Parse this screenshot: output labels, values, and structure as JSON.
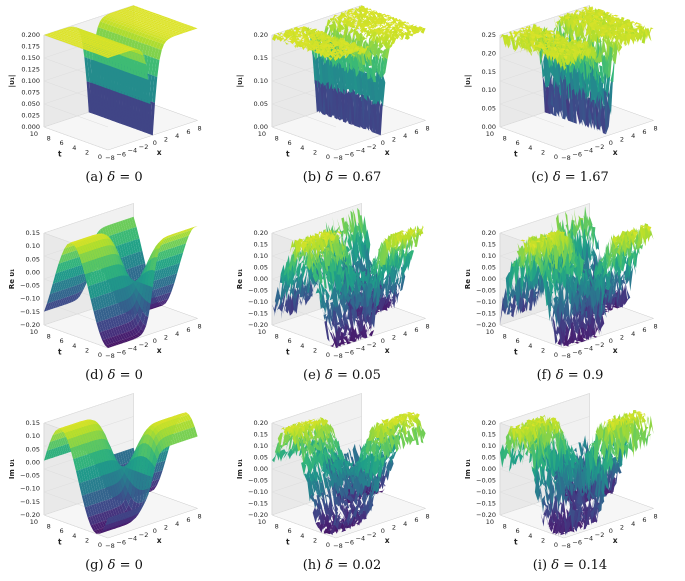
{
  "figure": {
    "panels": [
      {
        "label": "(a)",
        "delta_symbol": "δ",
        "delta_value": "= 0",
        "zlabel": "|υ₁|",
        "zticks": [
          "0.200",
          "0.175",
          "0.150",
          "0.125",
          "0.100",
          "0.075",
          "0.050",
          "0.025",
          "0.000"
        ],
        "tticks": [
          "10",
          "8",
          "6",
          "4",
          "2",
          "0"
        ],
        "xticks": [
          "−8",
          "−6",
          "−4",
          "−2",
          "0",
          "2",
          "4",
          "6",
          "8"
        ],
        "tlabel": "t",
        "xlabel": "x",
        "kind": "abs",
        "noise": 0
      },
      {
        "label": "(b)",
        "delta_symbol": "δ",
        "delta_value": "= 0.67",
        "zlabel": "|υ₁|",
        "zticks": [
          "0.20",
          "0.15",
          "0.10",
          "0.05",
          "0.00"
        ],
        "tticks": [
          "10",
          "8",
          "6",
          "4",
          "2",
          "0"
        ],
        "xticks": [
          "−8",
          "−6",
          "−4",
          "−2",
          "0",
          "2",
          "4",
          "6",
          "8"
        ],
        "tlabel": "t",
        "xlabel": "x",
        "kind": "abs",
        "noise": 0.35
      },
      {
        "label": "(c)",
        "delta_symbol": "δ",
        "delta_value": "= 1.67",
        "zlabel": "|υ₁|",
        "zticks": [
          "0.25",
          "0.20",
          "0.15",
          "0.10",
          "0.05",
          "0.00"
        ],
        "tticks": [
          "10",
          "8",
          "6",
          "4",
          "2",
          "0"
        ],
        "xticks": [
          "−8",
          "−6",
          "−4",
          "−2",
          "0",
          "2",
          "4",
          "6",
          "8"
        ],
        "tlabel": "t",
        "xlabel": "x",
        "kind": "abs",
        "noise": 0.8
      },
      {
        "label": "(d)",
        "delta_symbol": "δ",
        "delta_value": "= 0",
        "zlabel": "Re υ₁",
        "zticks": [
          "0.15",
          "0.10",
          "0.05",
          "0.00",
          "−0.05",
          "−0.10",
          "−0.15",
          "−0.20"
        ],
        "tticks": [
          "10",
          "8",
          "6",
          "4",
          "2",
          "0"
        ],
        "xticks": [
          "−8",
          "−6",
          "−4",
          "−2",
          "0",
          "2",
          "4",
          "6",
          "8"
        ],
        "tlabel": "t",
        "xlabel": "x",
        "kind": "re",
        "noise": 0
      },
      {
        "label": "(e)",
        "delta_symbol": "δ",
        "delta_value": "= 0.05",
        "zlabel": "Re υ₁",
        "zticks": [
          "0.20",
          "0.15",
          "0.10",
          "0.05",
          "0.00",
          "−0.05",
          "−0.10",
          "−0.15",
          "−0.20"
        ],
        "tticks": [
          "10",
          "8",
          "6",
          "4",
          "2",
          "0"
        ],
        "xticks": [
          "−8",
          "−6",
          "−4",
          "−2",
          "0",
          "2",
          "4",
          "6",
          "8"
        ],
        "tlabel": "t",
        "xlabel": "x",
        "kind": "re",
        "noise": 0.7
      },
      {
        "label": "(f)",
        "delta_symbol": "δ",
        "delta_value": "= 0.9",
        "zlabel": "Re υ₁",
        "zticks": [
          "0.20",
          "0.15",
          "0.10",
          "0.05",
          "0.00",
          "−0.05",
          "−0.10",
          "−0.15",
          "−0.20"
        ],
        "tticks": [
          "10",
          "8",
          "6",
          "4",
          "2",
          "0"
        ],
        "xticks": [
          "−8",
          "−6",
          "−4",
          "−2",
          "0",
          "2",
          "4",
          "6",
          "8"
        ],
        "tlabel": "t",
        "xlabel": "x",
        "kind": "re",
        "noise": 1.0
      },
      {
        "label": "(g)",
        "delta_symbol": "δ",
        "delta_value": "= 0",
        "zlabel": "Im υ₁",
        "zticks": [
          "0.15",
          "0.10",
          "0.05",
          "0.00",
          "−0.05",
          "−0.10",
          "−0.15",
          "−0.20"
        ],
        "tticks": [
          "10",
          "8",
          "6",
          "4",
          "2",
          "0"
        ],
        "xticks": [
          "−8",
          "−6",
          "−4",
          "−2",
          "0",
          "2",
          "4",
          "6",
          "8"
        ],
        "tlabel": "t",
        "xlabel": "x",
        "kind": "im",
        "noise": 0
      },
      {
        "label": "(h)",
        "delta_symbol": "δ",
        "delta_value": "= 0.02",
        "zlabel": "Im υ₁",
        "zticks": [
          "0.20",
          "0.15",
          "0.10",
          "0.05",
          "0.00",
          "−0.05",
          "−0.10",
          "−0.15",
          "−0.20"
        ],
        "tticks": [
          "10",
          "8",
          "6",
          "4",
          "2",
          "0"
        ],
        "xticks": [
          "−8",
          "−6",
          "−4",
          "−2",
          "0",
          "2",
          "4",
          "6",
          "8"
        ],
        "tlabel": "t",
        "xlabel": "x",
        "kind": "im",
        "noise": 0.4
      },
      {
        "label": "(i)",
        "delta_symbol": "δ",
        "delta_value": "= 0.14",
        "zlabel": "Im υ₁",
        "zticks": [
          "0.20",
          "0.15",
          "0.10",
          "0.05",
          "0.00",
          "−0.05",
          "−0.10",
          "−0.15",
          "−0.20"
        ],
        "tticks": [
          "10",
          "8",
          "6",
          "4",
          "2",
          "0"
        ],
        "xticks": [
          "−8",
          "−6",
          "−4",
          "−2",
          "0",
          "2",
          "4",
          "6",
          "8"
        ],
        "tlabel": "t",
        "xlabel": "x",
        "kind": "im",
        "noise": 0.9
      }
    ]
  },
  "chart_data": [
    {
      "type": "area",
      "panel": "(a)",
      "xlabel": "x",
      "ylabel": "t",
      "zlabel": "|υ₁|",
      "xlim": [
        -8,
        8
      ],
      "ylim": [
        0,
        10
      ],
      "zlim": [
        0,
        0.2
      ],
      "surface": "dark-soliton trough in |υ₁|, minimum 0 at x = 0, plateau 0.2 for |x| large",
      "colormap": "viridis"
    },
    {
      "type": "area",
      "panel": "(b)",
      "xlabel": "x",
      "ylabel": "t",
      "zlabel": "|υ₁|",
      "xlim": [
        -8,
        8
      ],
      "ylim": [
        0,
        10
      ],
      "zlim": [
        0,
        0.2
      ],
      "colormap": "viridis"
    },
    {
      "type": "area",
      "panel": "(c)",
      "xlabel": "x",
      "ylabel": "t",
      "zlabel": "|υ₁|",
      "xlim": [
        -8,
        8
      ],
      "ylim": [
        0,
        10
      ],
      "zlim": [
        0,
        0.25
      ],
      "colormap": "viridis"
    },
    {
      "type": "area",
      "panel": "(d)",
      "xlabel": "x",
      "ylabel": "t",
      "zlabel": "Re υ₁",
      "xlim": [
        -8,
        8
      ],
      "ylim": [
        0,
        10
      ],
      "zlim": [
        -0.2,
        0.15
      ],
      "colormap": "viridis"
    },
    {
      "type": "area",
      "panel": "(e)",
      "xlabel": "x",
      "ylabel": "t",
      "zlabel": "Re υ₁",
      "xlim": [
        -8,
        8
      ],
      "ylim": [
        0,
        10
      ],
      "zlim": [
        -0.2,
        0.2
      ],
      "colormap": "viridis"
    },
    {
      "type": "area",
      "panel": "(f)",
      "xlabel": "x",
      "ylabel": "t",
      "zlabel": "Re υ₁",
      "xlim": [
        -8,
        8
      ],
      "ylim": [
        0,
        10
      ],
      "zlim": [
        -0.2,
        0.2
      ],
      "colormap": "viridis"
    },
    {
      "type": "area",
      "panel": "(g)",
      "xlabel": "x",
      "ylabel": "t",
      "zlabel": "Im υ₁",
      "xlim": [
        -8,
        8
      ],
      "ylim": [
        0,
        10
      ],
      "zlim": [
        -0.2,
        0.15
      ],
      "colormap": "viridis"
    },
    {
      "type": "area",
      "panel": "(h)",
      "xlabel": "x",
      "ylabel": "t",
      "zlabel": "Im υ₁",
      "xlim": [
        -8,
        8
      ],
      "ylim": [
        0,
        10
      ],
      "zlim": [
        -0.2,
        0.2
      ],
      "colormap": "viridis"
    },
    {
      "type": "area",
      "panel": "(i)",
      "xlabel": "x",
      "ylabel": "t",
      "zlabel": "Im υ₁",
      "xlim": [
        -8,
        8
      ],
      "ylim": [
        0,
        10
      ],
      "zlim": [
        -0.2,
        0.2
      ],
      "colormap": "viridis"
    }
  ]
}
